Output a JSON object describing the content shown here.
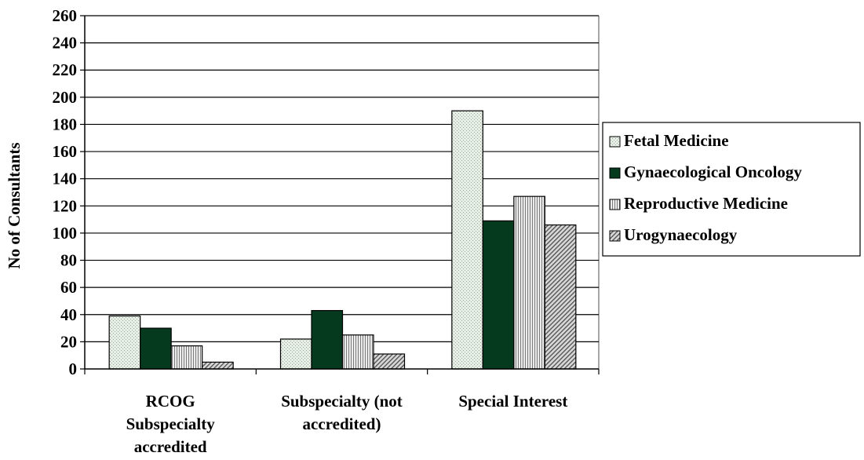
{
  "chart_data": {
    "type": "bar",
    "title": "",
    "xlabel": "",
    "ylabel": "No of Consultants",
    "ylim": [
      0,
      260
    ],
    "yticks": [
      0,
      20,
      40,
      60,
      80,
      100,
      120,
      140,
      160,
      180,
      200,
      220,
      240,
      260
    ],
    "categories": [
      [
        "RCOG",
        "Subspecialty",
        "accredited"
      ],
      [
        "Subspecialty (not",
        "accredited)"
      ],
      [
        "Special Interest"
      ]
    ],
    "series": [
      {
        "name": "Fetal Medicine",
        "values": [
          39,
          22,
          190
        ]
      },
      {
        "name": "Gynaecological Oncology",
        "values": [
          30,
          43,
          109
        ]
      },
      {
        "name": "Reproductive Medicine",
        "values": [
          17,
          25,
          127
        ]
      },
      {
        "name": "Urogynaecology",
        "values": [
          5,
          11,
          106
        ]
      }
    ],
    "grid": true,
    "legend": "right"
  }
}
